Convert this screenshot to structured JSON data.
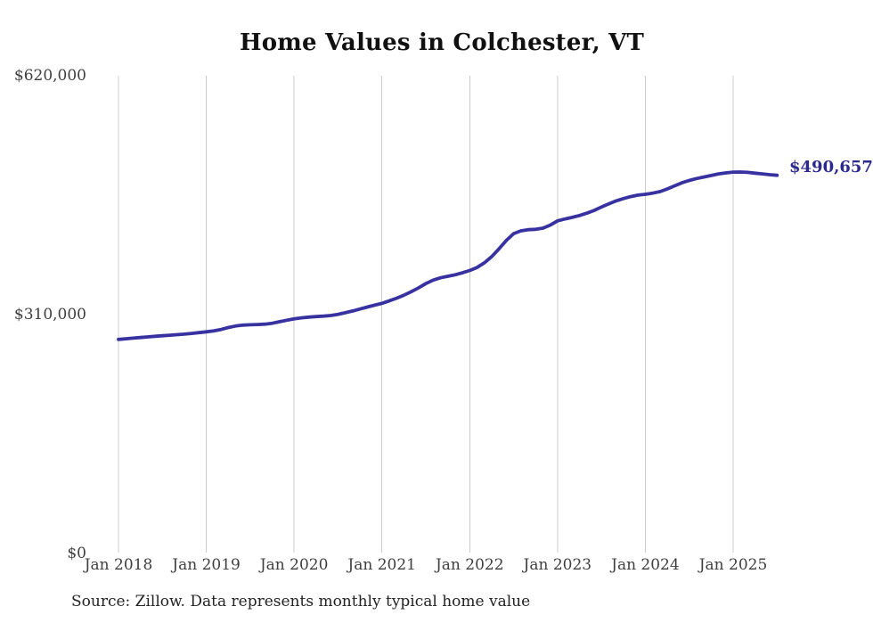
{
  "title": "Home Values in Colchester, VT",
  "source_note": "Source: Zillow. Data represents monthly typical home value",
  "colors": {
    "line": "#3732a0",
    "annotation": "#2d2a8e",
    "grid": "#cccccc",
    "axis_text": "#3f3f3f",
    "title_text": "#111111",
    "background": "#ffffff"
  },
  "chart_data": {
    "type": "line",
    "title": "Home Values in Colchester, VT",
    "xlabel": "",
    "ylabel": "",
    "x_unit": "month",
    "x_range": [
      "2018-01",
      "2025-07"
    ],
    "ylim": [
      0,
      620000
    ],
    "grid": "vertical-only",
    "legend": "none",
    "y_ticks": [
      {
        "label": "$0",
        "value": 0
      },
      {
        "label": "$310,000",
        "value": 310000
      },
      {
        "label": "$620,000",
        "value": 620000
      }
    ],
    "x_ticks": [
      {
        "label": "Jan 2018",
        "month_index": 0
      },
      {
        "label": "Jan 2019",
        "month_index": 12
      },
      {
        "label": "Jan 2020",
        "month_index": 24
      },
      {
        "label": "Jan 2021",
        "month_index": 36
      },
      {
        "label": "Jan 2022",
        "month_index": 48
      },
      {
        "label": "Jan 2023",
        "month_index": 60
      },
      {
        "label": "Jan 2024",
        "month_index": 72
      },
      {
        "label": "Jan 2025",
        "month_index": 84
      }
    ],
    "series": [
      {
        "name": "Typical home value",
        "final_value": 490657,
        "final_label": "$490,657",
        "values": [
          277500,
          278300,
          279100,
          280000,
          280800,
          281600,
          282300,
          283000,
          283700,
          284400,
          285300,
          286300,
          287400,
          288500,
          290400,
          292900,
          294900,
          296000,
          296500,
          296900,
          297300,
          298500,
          300400,
          302400,
          304300,
          305500,
          306500,
          307200,
          307800,
          308600,
          310100,
          312100,
          314500,
          317000,
          319500,
          322000,
          324300,
          327500,
          331000,
          335000,
          339500,
          344500,
          350000,
          354500,
          357500,
          359500,
          361500,
          364000,
          367000,
          371000,
          377000,
          385000,
          395000,
          406000,
          415000,
          418500,
          420000,
          420500,
          422000,
          426000,
          431500,
          434000,
          436000,
          438500,
          441500,
          445000,
          449500,
          453500,
          457500,
          460500,
          463000,
          465000,
          466000,
          467500,
          469500,
          473000,
          477000,
          481000,
          484000,
          486500,
          488500,
          490500,
          492500,
          493800,
          494800,
          495000,
          494500,
          493500,
          492500,
          491500,
          490657
        ]
      }
    ]
  }
}
